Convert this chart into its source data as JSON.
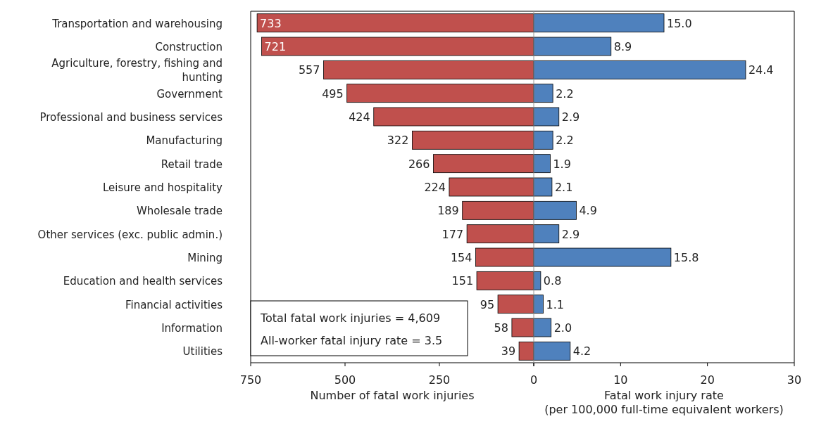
{
  "chart_data": [
    {
      "type": "bar",
      "orientation": "horizontal",
      "categories": [
        "Transportation and warehousing",
        "Construction",
        "Agriculture, forestry, fishing and hunting",
        "Government",
        "Professional and business services",
        "Manufacturing",
        "Retail trade",
        "Leisure and hospitality",
        "Wholesale trade",
        "Other services (exc. public admin.)",
        "Mining",
        "Education and health services",
        "Financial activities",
        "Information",
        "Utilities"
      ],
      "values": [
        733,
        721,
        557,
        495,
        424,
        322,
        266,
        224,
        189,
        177,
        154,
        151,
        95,
        58,
        39
      ],
      "color": "#c0504d",
      "xlim": [
        750,
        0
      ],
      "xticks": [
        750,
        500,
        250,
        0
      ],
      "xlabel": "Number of fatal work injuries",
      "data_labels": true,
      "annotations": [
        "Total fatal work injuries = 4,609",
        "All-worker fatal injury rate = 3.5"
      ]
    },
    {
      "type": "bar",
      "orientation": "horizontal",
      "values": [
        15.0,
        8.9,
        24.4,
        2.2,
        2.9,
        2.2,
        1.9,
        2.1,
        4.9,
        2.9,
        15.8,
        0.8,
        1.1,
        2.0,
        4.2
      ],
      "value_labels": [
        "15.0",
        "8.9",
        "24.4",
        "2.2",
        "2.9",
        "2.2",
        "1.9",
        "2.1",
        "4.9",
        "2.9",
        "15.8",
        "0.8",
        "1.1",
        "2.0",
        "4.2"
      ],
      "color": "#4f81bd",
      "xlim": [
        0,
        30
      ],
      "xticks": [
        {
          "value": 0,
          "label": null
        },
        10,
        20,
        30
      ],
      "xlabel": "Fatal work injury rate\n(per 100,000 full-time equivalent workers)"
    }
  ]
}
